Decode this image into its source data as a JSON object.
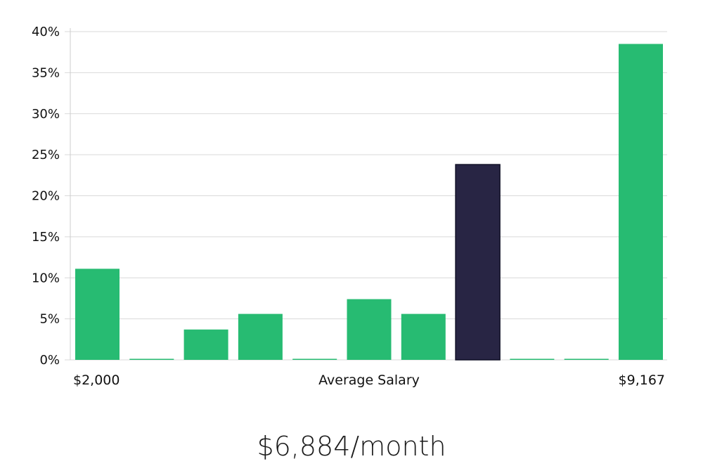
{
  "chart_data": {
    "type": "bar",
    "title": "",
    "xlabel": "Average Salary",
    "ylabel": "",
    "x_min_label": "$2,000",
    "x_max_label": "$9,167",
    "yticks": [
      "0%",
      "5%",
      "10%",
      "15%",
      "20%",
      "25%",
      "30%",
      "35%",
      "40%"
    ],
    "ylim": [
      0,
      40
    ],
    "grid": true,
    "values": [
      11.1,
      0,
      3.7,
      5.6,
      0,
      7.4,
      5.6,
      23.8,
      0,
      0,
      38.5
    ],
    "highlight_index": 7,
    "colors": {
      "bar": "#27bb72",
      "highlight": "#282544",
      "highlight_outline": "#111026"
    }
  },
  "summary": {
    "value": "$6,884/month"
  }
}
